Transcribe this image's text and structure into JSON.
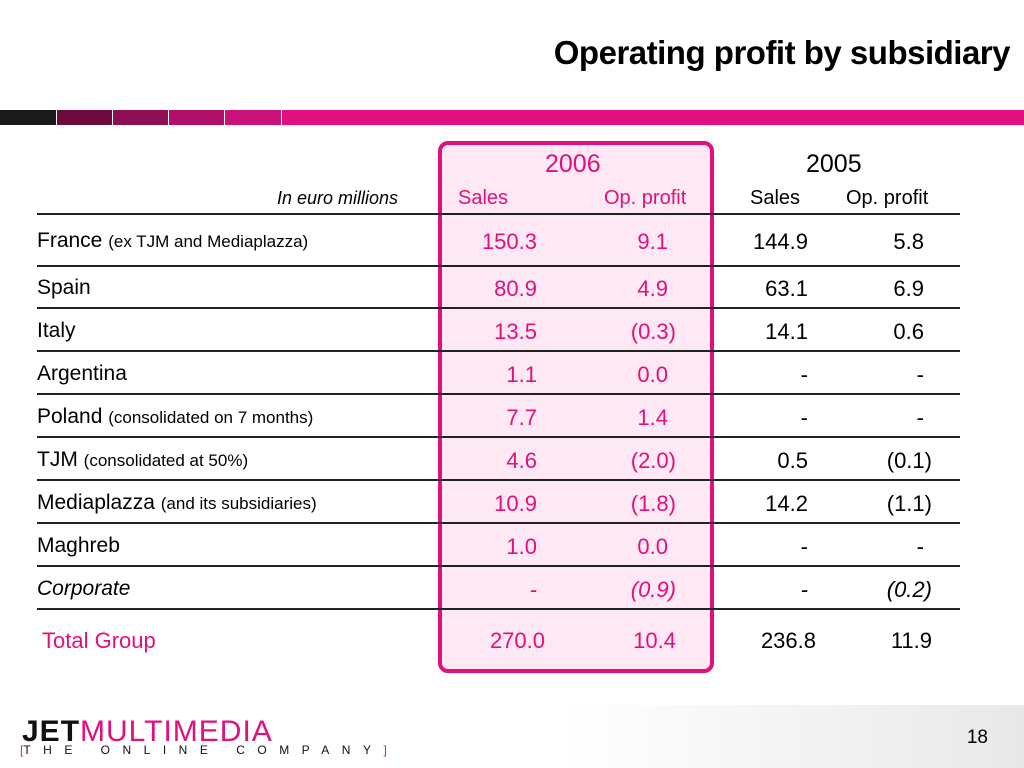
{
  "title": "Operating profit by subsidiary",
  "colors": {
    "accent": "#e0107f",
    "highlight_bg": "#fde8f3"
  },
  "table": {
    "unit_label": "In euro millions",
    "year_current": "2006",
    "year_previous": "2005",
    "col_sales": "Sales",
    "col_op": "Op. profit",
    "rows": [
      {
        "name": "France",
        "note": "(ex TJM and Mediaplazza)",
        "s06": "150.3",
        "o06": "9.1",
        "s05": "144.9",
        "o05": "5.8"
      },
      {
        "name": "Spain",
        "note": "",
        "s06": "80.9",
        "o06": "4.9",
        "s05": "63.1",
        "o05": "6.9"
      },
      {
        "name": "Italy",
        "note": "",
        "s06": "13.5",
        "o06": "(0.3)",
        "s05": "14.1",
        "o05": "0.6"
      },
      {
        "name": "Argentina",
        "note": "",
        "s06": "1.1",
        "o06": "0.0",
        "s05": "-",
        "o05": "-"
      },
      {
        "name": "Poland",
        "note": "(consolidated on 7 months)",
        "s06": "7.7",
        "o06": "1.4",
        "s05": "-",
        "o05": "-"
      },
      {
        "name": "TJM",
        "note": "(consolidated at 50%)",
        "s06": "4.6",
        "o06": "(2.0)",
        "s05": "0.5",
        "o05": "(0.1)"
      },
      {
        "name": "Mediaplazza",
        "note": "(and its subsidiaries)",
        "s06": "10.9",
        "o06": "(1.8)",
        "s05": "14.2",
        "o05": "(1.1)"
      },
      {
        "name": "Maghreb",
        "note": "",
        "s06": "1.0",
        "o06": "0.0",
        "s05": "-",
        "o05": "-"
      },
      {
        "name": "Corporate",
        "note": "",
        "s06": "-",
        "o06": "(0.9)",
        "s05": "-",
        "o05": "(0.2)"
      }
    ],
    "total": {
      "name": "Total Group",
      "s06": "270.0",
      "o06": "10.4",
      "s05": "236.8",
      "o05": "11.9"
    }
  },
  "footer": {
    "logo_jet": "JET",
    "logo_multimedia": "MULTIMEDIA",
    "logo_tagline_open": "[",
    "logo_tagline": "THE ONLINE COMPANY",
    "logo_tagline_close": "]",
    "page_number": "18"
  }
}
